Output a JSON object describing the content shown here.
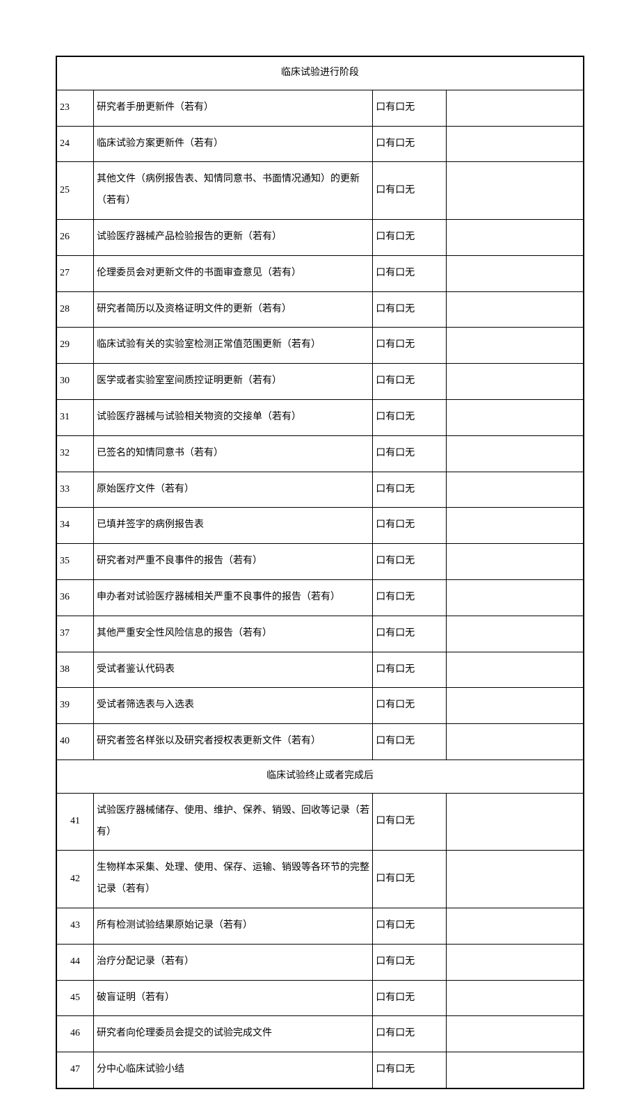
{
  "check_label": "口有口无",
  "sections": [
    {
      "title": "临床试验进行阶段",
      "num_align": "left",
      "rows": [
        {
          "num": "23",
          "desc": "研究者手册更新件（若有）"
        },
        {
          "num": "24",
          "desc": "临床试验方案更新件（若有）"
        },
        {
          "num": "25",
          "desc": "其他文件（病例报告表、知情同意书、书面情况通知）的更新（若有）"
        },
        {
          "num": "26",
          "desc": "试验医疗器械产品检验报告的更新（若有）"
        },
        {
          "num": "27",
          "desc": "伦理委员会对更新文件的书面审查意见（若有）"
        },
        {
          "num": "28",
          "desc": "研究者简历以及资格证明文件的更新（若有）"
        },
        {
          "num": "29",
          "desc": "临床试验有关的实验室检测正常值范围更新（若有）"
        },
        {
          "num": "30",
          "desc": "医学或者实验室室间质控证明更新（若有）"
        },
        {
          "num": "31",
          "desc": "试验医疗器械与试验相关物资的交接单（若有）"
        },
        {
          "num": "32",
          "desc": "已签名的知情同意书（若有）"
        },
        {
          "num": "33",
          "desc": "原始医疗文件（若有）"
        },
        {
          "num": "34",
          "desc": "已填并签字的病例报告表"
        },
        {
          "num": "35",
          "desc": "研究者对严重不良事件的报告（若有）"
        },
        {
          "num": "36",
          "desc": "申办者对试验医疗器械相关严重不良事件的报告（若有）"
        },
        {
          "num": "37",
          "desc": "其他严重安全性风险信息的报告（若有）"
        },
        {
          "num": "38",
          "desc": "受试者鉴认代码表"
        },
        {
          "num": "39",
          "desc": "受试者筛选表与入选表"
        },
        {
          "num": "40",
          "desc": "研究者签名样张以及研究者授权表更新文件（若有）"
        }
      ]
    },
    {
      "title": "临床试验终止或者完成后",
      "num_align": "center",
      "rows": [
        {
          "num": "41",
          "desc": "试验医疗器械储存、使用、维护、保养、销毁、回收等记录（若有）"
        },
        {
          "num": "42",
          "desc": "生物样本采集、处理、使用、保存、运输、销毁等各环节的完整记录（若有）"
        },
        {
          "num": "43",
          "desc": "所有检测试验结果原始记录（若有）"
        },
        {
          "num": "44",
          "desc": "治疗分配记录（若有）"
        },
        {
          "num": "45",
          "desc": "破盲证明（若有）"
        },
        {
          "num": "46",
          "desc": "研究者向伦理委员会提交的试验完成文件"
        },
        {
          "num": "47",
          "desc": "分中心临床试验小结"
        }
      ]
    }
  ]
}
